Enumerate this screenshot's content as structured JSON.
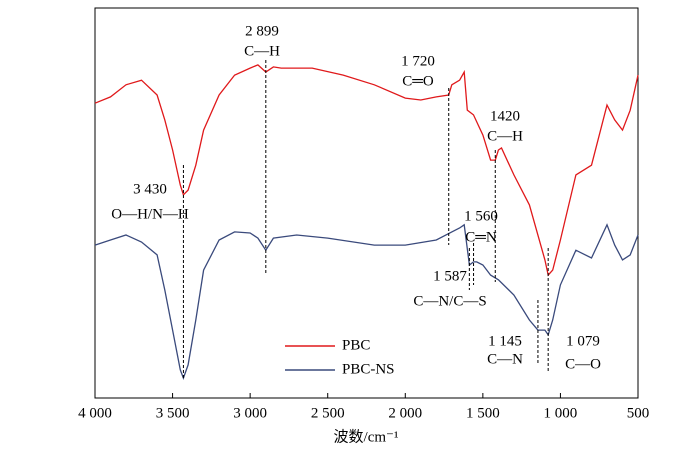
{
  "chart_data": {
    "type": "line",
    "x_label": "波数/cm⁻¹",
    "xlim": [
      4000,
      500
    ],
    "ylim": [
      0,
      100
    ],
    "xticks": [
      {
        "value": 4000,
        "label": "4 000"
      },
      {
        "value": 3500,
        "label": "3 500"
      },
      {
        "value": 3000,
        "label": "3 000"
      },
      {
        "value": 2500,
        "label": "2 500"
      },
      {
        "value": 2000,
        "label": "2 000"
      },
      {
        "value": 1500,
        "label": "1 500"
      },
      {
        "value": 1000,
        "label": "1 000"
      },
      500
    ],
    "legend": "lower-left",
    "series": [
      {
        "name": "PBC",
        "color": "#e0191b",
        "x": [
          4000,
          3900,
          3800,
          3700,
          3600,
          3550,
          3500,
          3450,
          3430,
          3400,
          3350,
          3300,
          3200,
          3100,
          3000,
          2950,
          2899,
          2850,
          2800,
          2600,
          2400,
          2200,
          2000,
          1900,
          1800,
          1720,
          1700,
          1650,
          1620,
          1600,
          1560,
          1530,
          1500,
          1450,
          1420,
          1400,
          1380,
          1300,
          1200,
          1100,
          1079,
          1050,
          1000,
          900,
          800,
          700,
          650,
          600,
          550,
          500
        ],
        "values": [
          75.6,
          77.2,
          80.3,
          81.5,
          77.7,
          71.3,
          63.6,
          54.6,
          52.1,
          53.3,
          59.7,
          68.7,
          77.7,
          82.8,
          84.6,
          85.4,
          83.6,
          84.9,
          84.6,
          84.6,
          82.8,
          80.3,
          76.9,
          76.4,
          77.2,
          77.7,
          80.3,
          81.5,
          83.6,
          73.8,
          72.6,
          70,
          67.4,
          61,
          61,
          63.6,
          64.1,
          57.2,
          49.5,
          35.4,
          31.5,
          32.8,
          40.5,
          57.2,
          59.7,
          75.1,
          71.3,
          68.7,
          73.8,
          82.8
        ]
      },
      {
        "name": "PBC-NS",
        "color": "#3a4a7c",
        "x": [
          4000,
          3900,
          3800,
          3700,
          3600,
          3550,
          3500,
          3450,
          3430,
          3400,
          3350,
          3300,
          3200,
          3100,
          3000,
          2950,
          2899,
          2850,
          2700,
          2500,
          2200,
          2000,
          1800,
          1700,
          1650,
          1620,
          1587,
          1560,
          1540,
          1500,
          1450,
          1400,
          1300,
          1200,
          1145,
          1100,
          1079,
          1050,
          1000,
          900,
          800,
          700,
          650,
          600,
          550,
          500
        ],
        "values": [
          39.2,
          40.5,
          41.8,
          40,
          36.7,
          27.7,
          17.4,
          7.2,
          5.1,
          8.5,
          20,
          32.8,
          40.5,
          42.6,
          42.3,
          41,
          37.9,
          41,
          41.8,
          41,
          39.2,
          39.2,
          40.5,
          42.6,
          43.6,
          44.4,
          34.1,
          34.9,
          34.9,
          34.1,
          31.5,
          30.3,
          26.4,
          20,
          17.4,
          17.4,
          16.2,
          20,
          29,
          37.9,
          35.9,
          44.4,
          39.2,
          35.4,
          36.7,
          41.8
        ]
      }
    ],
    "annotations": [
      {
        "value": 3430,
        "label": "3 430",
        "group": "O—H/N—H"
      },
      {
        "value": 2899,
        "label": "2 899",
        "group": "C—H"
      },
      {
        "value": 1720,
        "label": "1 720",
        "group": "C═O"
      },
      {
        "value": 1420,
        "label": "1420",
        "group": "C—H"
      },
      {
        "value": 1560,
        "label": "1 560",
        "group": "C═N"
      },
      {
        "value": 1587,
        "label": "1 587",
        "group": "C—N/C—S"
      },
      {
        "value": 1145,
        "label": "1 145",
        "group": "C—N"
      },
      {
        "value": 1079,
        "label": "1 079",
        "group": "C—O"
      }
    ]
  }
}
